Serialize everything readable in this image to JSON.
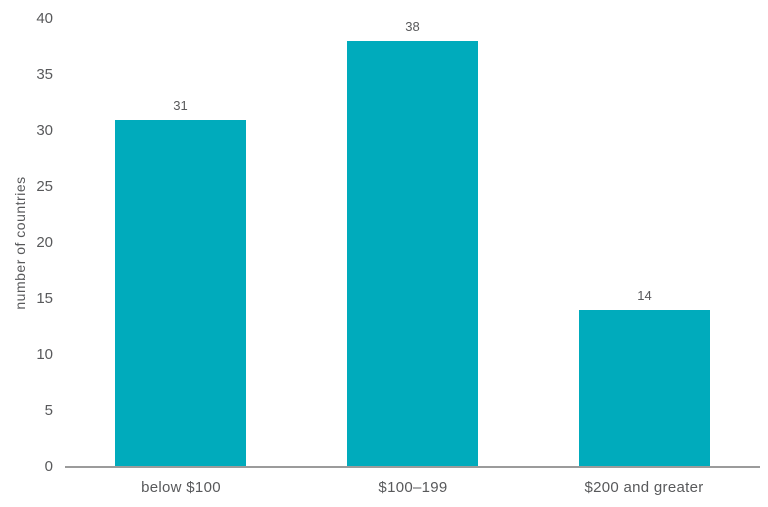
{
  "chart_data": {
    "type": "bar",
    "categories": [
      "below $100",
      "$100–199",
      "$200 and greater"
    ],
    "values": [
      31,
      38,
      14
    ],
    "value_labels": [
      "31",
      "38",
      "14"
    ],
    "title": "",
    "xlabel": "",
    "ylabel": "number of countries",
    "ylim": [
      0,
      40
    ],
    "yticks": [
      0,
      5,
      10,
      15,
      20,
      25,
      30,
      35,
      40
    ],
    "grid": false,
    "legend": null,
    "colors": {
      "bar": "#00abbc",
      "axis_line": "#9b9b9b",
      "text": "#58595b",
      "background": "#ffffff"
    }
  },
  "layout_hints": {
    "bar_value_labels_shown": true,
    "y_axis_line_shown": false,
    "x_axis_line_shown": true
  }
}
